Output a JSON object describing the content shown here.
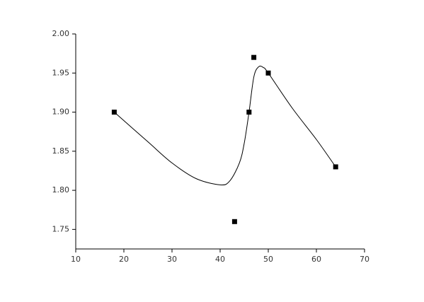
{
  "chart_data": {
    "type": "scatter",
    "series": [
      {
        "kind": "points",
        "color": "#000000",
        "x": [
          18,
          43,
          46,
          47,
          50,
          64
        ],
        "values": [
          1.9,
          1.76,
          1.9,
          1.97,
          1.95,
          1.83
        ]
      },
      {
        "kind": "curve",
        "color": "#000000",
        "x": [
          18,
          25,
          30,
          35,
          40,
          42,
          44,
          45,
          46,
          47,
          48,
          49,
          50,
          55,
          60,
          64
        ],
        "values": [
          1.9,
          1.862,
          1.835,
          1.815,
          1.807,
          1.812,
          1.835,
          1.86,
          1.9,
          1.945,
          1.958,
          1.957,
          1.95,
          1.905,
          1.865,
          1.83
        ]
      }
    ],
    "xlim": [
      10,
      70
    ],
    "xticks": [
      10,
      20,
      30,
      40,
      50,
      60,
      70
    ],
    "ylim": [
      1.725,
      2.0
    ],
    "yticks": [
      1.75,
      {
        "value": 1.8,
        "label": "1.80"
      },
      1.85,
      {
        "value": 1.9,
        "label": "1.90"
      },
      1.95,
      {
        "value": 2.0,
        "label": "2.00"
      }
    ]
  }
}
